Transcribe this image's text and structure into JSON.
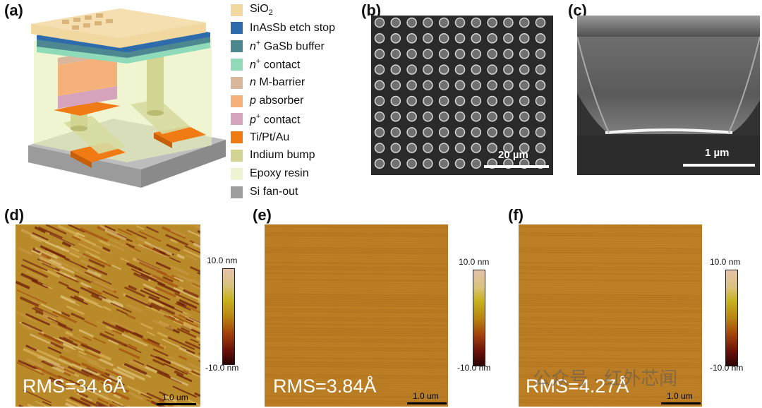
{
  "panel_labels": {
    "a": "(a)",
    "b": "(b)",
    "c": "(c)",
    "d": "(d)",
    "e": "(e)",
    "f": "(f)"
  },
  "legend": [
    {
      "pre": "",
      "main": "SiO",
      "sub": "2",
      "sup": "",
      "rest": "",
      "color": "#f1d7a0"
    },
    {
      "pre": "",
      "main": "InAsSb etch stop",
      "sub": "",
      "sup": "",
      "rest": "",
      "color": "#2e6bab"
    },
    {
      "pre": "n",
      "main": "",
      "sub": "",
      "sup": "+",
      "rest": " GaSb buffer",
      "color": "#4d8890"
    },
    {
      "pre": "n",
      "main": "",
      "sub": "",
      "sup": "+",
      "rest": " contact",
      "color": "#8fdab8"
    },
    {
      "pre": "n",
      "main": "",
      "sub": "",
      "sup": "",
      "rest": " M-barrier",
      "color": "#d9b79c"
    },
    {
      "pre": "p",
      "main": "",
      "sub": "",
      "sup": "",
      "rest": " absorber",
      "color": "#f4b27a"
    },
    {
      "pre": "p",
      "main": "",
      "sub": "",
      "sup": "+",
      "rest": " contact",
      "color": "#d6a3bd"
    },
    {
      "pre": "",
      "main": "Ti/Pt/Au",
      "sub": "",
      "sup": "",
      "rest": "",
      "color": "#f07a14"
    },
    {
      "pre": "",
      "main": "Indium bump",
      "sub": "",
      "sup": "",
      "rest": "",
      "color": "#d2d491"
    },
    {
      "pre": "",
      "main": "Epoxy resin",
      "sub": "",
      "sup": "",
      "rest": "",
      "color": "#eef3d1"
    },
    {
      "pre": "",
      "main": "Si fan-out",
      "sub": "",
      "sup": "",
      "rest": "",
      "color": "#9e9e9e"
    }
  ],
  "sem_b": {
    "scale": "20 µm"
  },
  "sem_c": {
    "scale": "1 µm"
  },
  "afm": [
    {
      "rms": "RMS=34.6Å",
      "scale": "1.0 um",
      "cbar_top": "10.0 nm",
      "cbar_bottom": "-10.0 nm"
    },
    {
      "rms": "RMS=3.84Å",
      "scale": "1.0 um",
      "cbar_top": "10.0 nm",
      "cbar_bottom": "-10.0 nm"
    },
    {
      "rms": "RMS=4.27Å",
      "scale": "1.0 um",
      "cbar_top": "10.0 nm",
      "cbar_bottom": "-10.0 nm"
    }
  ],
  "watermark": "公众号 · 红外芯闻"
}
